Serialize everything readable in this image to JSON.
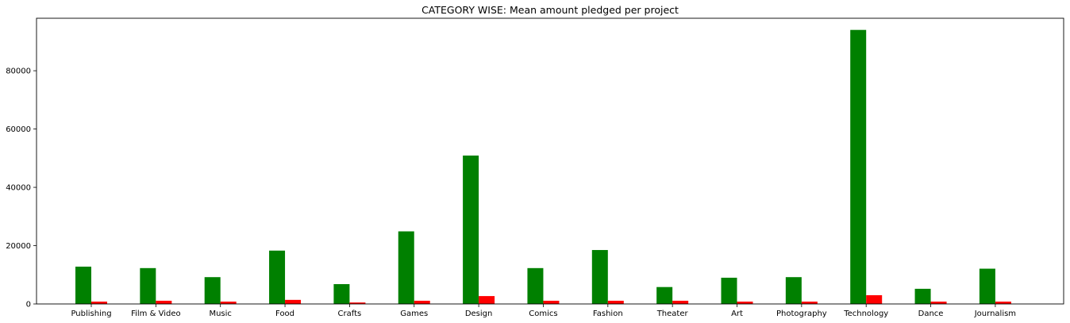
{
  "chart_data": {
    "type": "bar",
    "title": "CATEGORY WISE: Mean amount pledged per project",
    "xlabel": "",
    "ylabel": "",
    "categories": [
      "Publishing",
      "Film & Video",
      "Music",
      "Food",
      "Crafts",
      "Games",
      "Design",
      "Comics",
      "Fashion",
      "Theater",
      "Art",
      "Photography",
      "Technology",
      "Dance",
      "Journalism"
    ],
    "series": [
      {
        "color": "#008000",
        "values": [
          12800,
          12300,
          9200,
          18300,
          6800,
          24900,
          50900,
          12300,
          18500,
          5800,
          9000,
          9200,
          94000,
          5200,
          12100
        ]
      },
      {
        "color": "#ff0000",
        "values": [
          800,
          1100,
          800,
          1400,
          500,
          1100,
          2700,
          1100,
          1100,
          1100,
          800,
          800,
          3000,
          800,
          800
        ]
      }
    ],
    "ylim": [
      0,
      98000
    ],
    "yticks": [
      0,
      20000,
      40000,
      60000,
      80000
    ],
    "grid": false,
    "legend": "none"
  }
}
